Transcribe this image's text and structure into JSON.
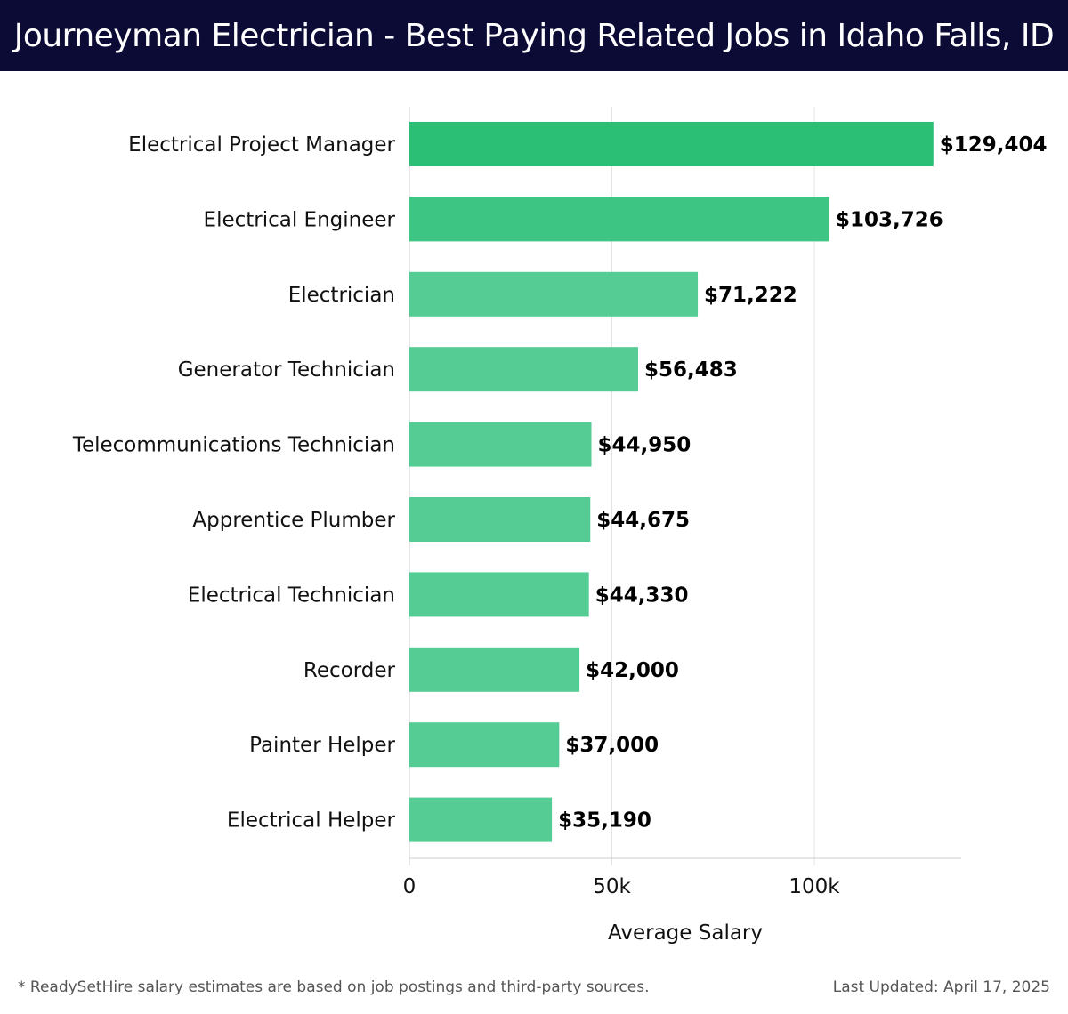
{
  "header": {
    "title": "Journeyman Electrician - Best Paying Related Jobs in Idaho Falls, ID"
  },
  "chart_data": {
    "type": "bar",
    "orientation": "horizontal",
    "categories": [
      "Electrical Project Manager",
      "Electrical Engineer",
      "Electrician",
      "Generator Technician",
      "Telecommunications Technician",
      "Apprentice Plumber",
      "Electrical Technician",
      "Recorder",
      "Painter Helper",
      "Electrical Helper"
    ],
    "values": [
      129404,
      103726,
      71222,
      56483,
      44950,
      44675,
      44330,
      42000,
      37000,
      35190
    ],
    "data_labels": [
      "$129,404",
      "$103,726",
      "$71,222",
      "$56,483",
      "$44,950",
      "$44,675",
      "$44,330",
      "$42,000",
      "$37,000",
      "$35,190"
    ],
    "xlabel": "Average Salary",
    "ylabel": "",
    "xlim": [
      0,
      136000
    ],
    "xticks": [
      0,
      50000,
      100000
    ],
    "xtick_labels": [
      "0",
      "50k",
      "100k"
    ],
    "grid": "vertical",
    "colors": {
      "bar_high": "#2bbf76",
      "bar_low": "#55cc94",
      "grid": "#e3e3e3",
      "axis": "#cccccc"
    }
  },
  "footer": {
    "note": "* ReadySetHire salary estimates are based on job postings and third-party sources.",
    "updated": "Last Updated: April 17, 2025"
  }
}
